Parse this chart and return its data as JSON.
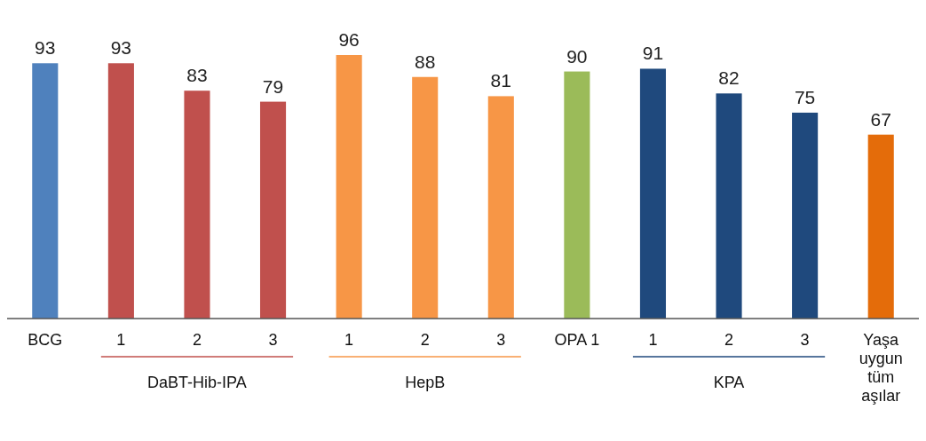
{
  "chart_data": {
    "type": "bar",
    "categories": [
      "BCG",
      "1",
      "2",
      "3",
      "1",
      "2",
      "3",
      "OPA 1",
      "1",
      "2",
      "3",
      "Yaşa uygun tüm aşılar"
    ],
    "values": [
      93,
      93,
      83,
      79,
      96,
      88,
      81,
      90,
      91,
      82,
      75,
      67
    ],
    "colors": [
      "#4f81bd",
      "#c0504d",
      "#c0504d",
      "#c0504d",
      "#f79646",
      "#f79646",
      "#f79646",
      "#9bbb59",
      "#1f497d",
      "#1f497d",
      "#1f497d",
      "#e46c0a"
    ],
    "tick_labels": "x",
    "data_labels": true,
    "annotations": [
      "DaBT-Hib-IPA",
      "HepB",
      "KPA"
    ]
  }
}
